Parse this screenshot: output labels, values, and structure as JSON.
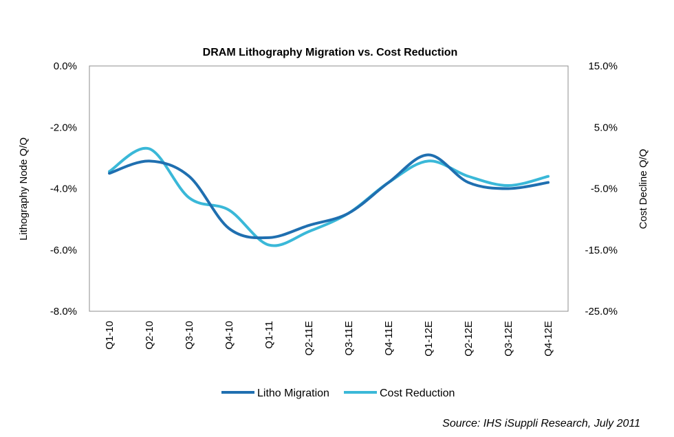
{
  "chart_data": {
    "type": "line",
    "title": "DRAM Lithography Migration vs. Cost Reduction",
    "ylabel": "Lithography Node Q/Q",
    "y2label": "Cost Decline Q/Q",
    "source": "Source: IHS iSuppli Research, July 2011",
    "categories": [
      "Q1-10",
      "Q2-10",
      "Q3-10",
      "Q4-10",
      "Q1-11",
      "Q2-11E",
      "Q3-11E",
      "Q4-11E",
      "Q1-12E",
      "Q2-12E",
      "Q3-12E",
      "Q4-12E"
    ],
    "ylim": [
      -8,
      0
    ],
    "y_ticks": [
      {
        "value": 0,
        "label": "0.0%"
      },
      {
        "value": -2,
        "label": "-2.0%"
      },
      {
        "value": -4,
        "label": "-4.0%"
      },
      {
        "value": -6,
        "label": "-6.0%"
      },
      {
        "value": -8,
        "label": "-8.0%"
      }
    ],
    "y2lim": [
      -25,
      15
    ],
    "y2_ticks": [
      {
        "value": 15,
        "label": "15.0%"
      },
      {
        "value": 5,
        "label": "5.0%"
      },
      {
        "value": -5,
        "label": "-5.0%"
      },
      {
        "value": -15,
        "label": "-15.0%"
      },
      {
        "value": -25,
        "label": "-25.0%"
      }
    ],
    "series": [
      {
        "name": "Litho Migration",
        "axis": "left",
        "color": "#1f6fb0",
        "values": [
          -3.5,
          -3.1,
          -3.6,
          -5.3,
          -5.6,
          -5.2,
          -4.8,
          -3.8,
          -2.9,
          -3.8,
          -4.0,
          -3.8
        ]
      },
      {
        "name": "Cost Reduction",
        "axis": "right",
        "color": "#3ab8d8",
        "values": [
          -2.2,
          1.5,
          -6.5,
          -8.5,
          -14.2,
          -12.0,
          -9.0,
          -4.0,
          -0.5,
          -3.0,
          -4.5,
          -3.0
        ]
      }
    ],
    "legend_position": "bottom"
  }
}
